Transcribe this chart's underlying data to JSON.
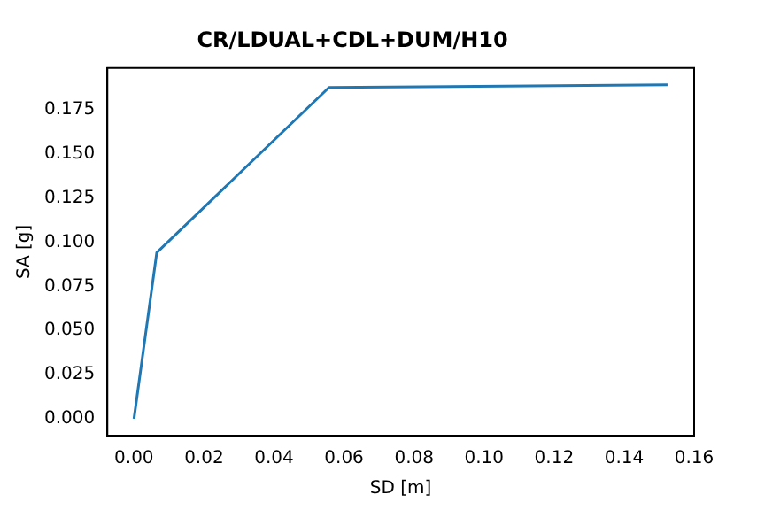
{
  "chart_data": {
    "type": "line",
    "title": "CR/LDUAL+CDL+DUM/H10",
    "xlabel": "SD [m]",
    "ylabel": "SA [g]",
    "x": [
      0,
      0.0065,
      0.0557,
      0.1524
    ],
    "series": [
      {
        "color": "#1f77b4",
        "values": [
          0,
          0.094,
          0.1875,
          0.189
        ]
      }
    ],
    "xlim": [
      -0.0076,
      0.16
    ],
    "ylim": [
      -0.0095,
      0.1985
    ],
    "xticks": [
      {
        "value": 0,
        "label": "0.00"
      },
      {
        "value": 0.02,
        "label": "0.02"
      },
      {
        "value": 0.04,
        "label": "0.04"
      },
      {
        "value": 0.06,
        "label": "0.06"
      },
      {
        "value": 0.08,
        "label": "0.08"
      },
      {
        "value": 0.1,
        "label": "0.10"
      },
      {
        "value": 0.12,
        "label": "0.12"
      },
      {
        "value": 0.14,
        "label": "0.14"
      },
      {
        "value": 0.16,
        "label": "0.16"
      }
    ],
    "yticks": [
      {
        "value": 0,
        "label": "0.000"
      },
      {
        "value": 0.025,
        "label": "0.025"
      },
      {
        "value": 0.05,
        "label": "0.050"
      },
      {
        "value": 0.075,
        "label": "0.075"
      },
      {
        "value": 0.1,
        "label": "0.100"
      },
      {
        "value": 0.125,
        "label": "0.125"
      },
      {
        "value": 0.15,
        "label": "0.150"
      },
      {
        "value": 0.175,
        "label": "0.175"
      }
    ],
    "grid": false,
    "legend": false,
    "marker": "none"
  }
}
